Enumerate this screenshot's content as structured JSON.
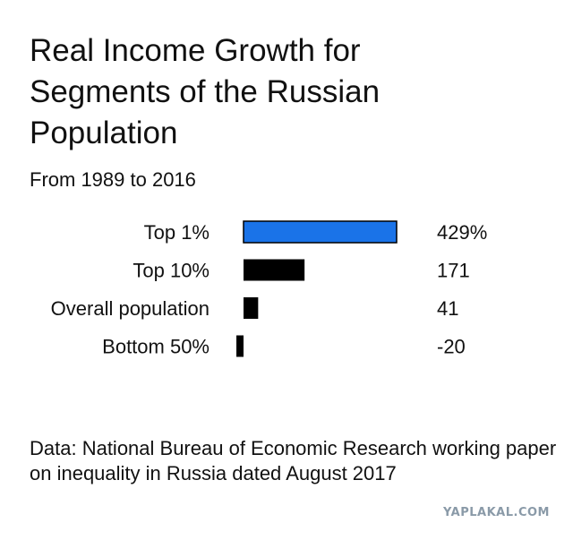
{
  "chart_data": {
    "type": "bar",
    "orientation": "horizontal",
    "title": "Real Income Growth for\nSegments of the Russian\nPopulation",
    "subtitle": "From 1989 to 2016",
    "categories": [
      "Top 1%",
      "Top 10%",
      "Overall population",
      "Bottom 50%"
    ],
    "values": [
      429,
      171,
      41,
      -20
    ],
    "value_labels": [
      "429%",
      "171",
      "41",
      "-20"
    ],
    "bar_colors": [
      "#1a73e8",
      "#000000",
      "#000000",
      "#000000"
    ],
    "xlim": [
      -20,
      429
    ],
    "grid": false,
    "legend": "none",
    "footnote": "Data: National Bureau of Economic Research working paper on inequality in Russia dated August 2017"
  },
  "watermark": "YAPLAKAL.COM"
}
